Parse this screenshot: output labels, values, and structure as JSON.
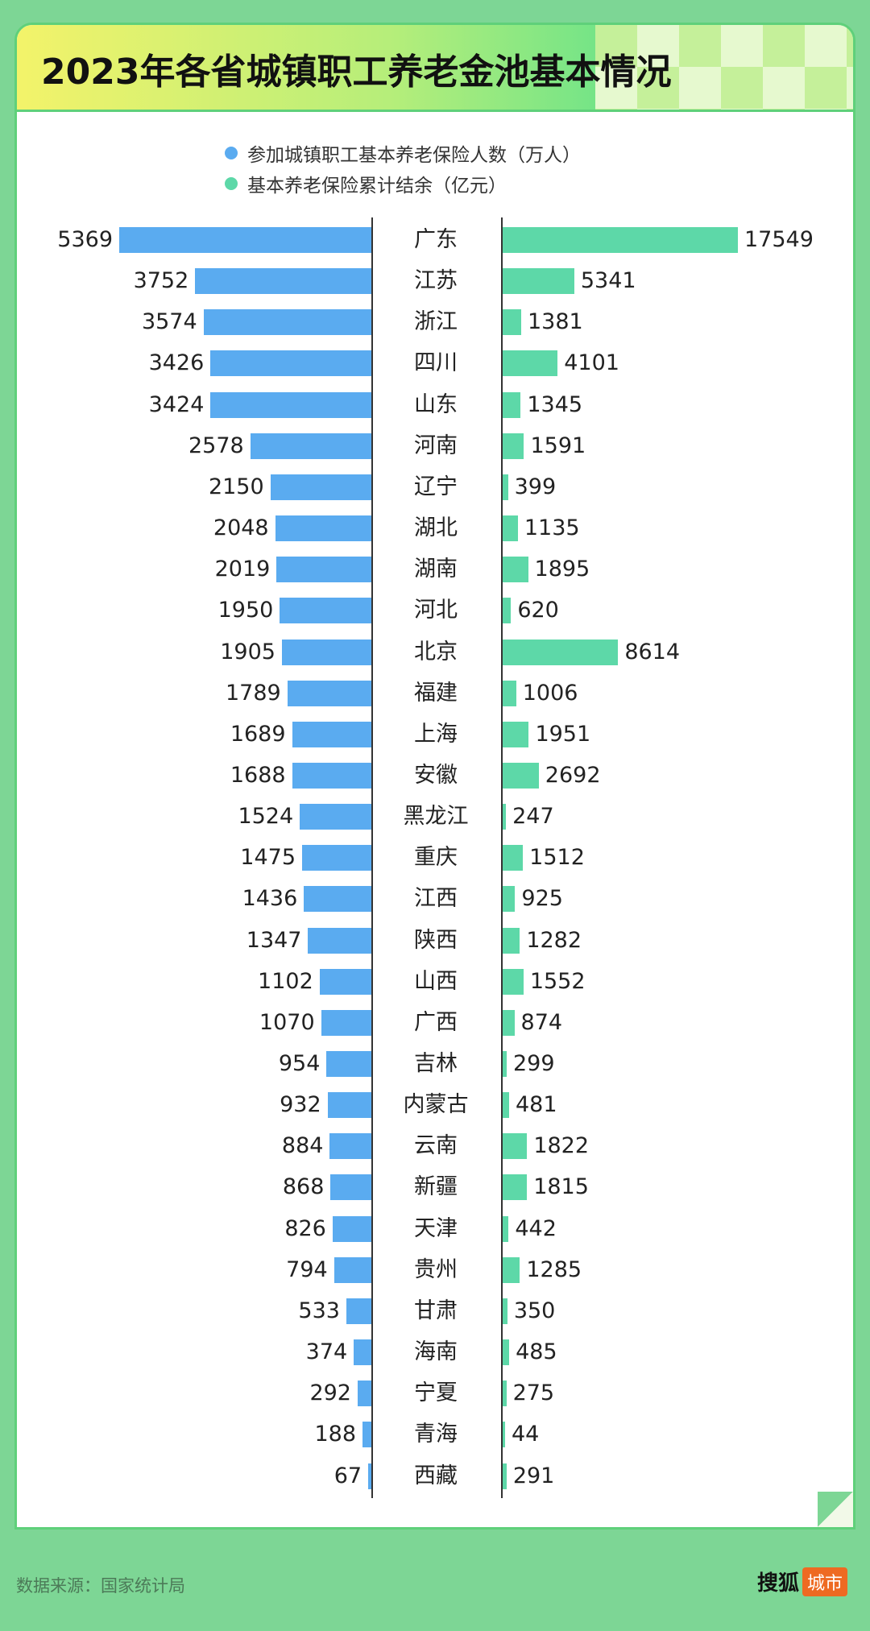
{
  "title": "2023年各省城镇职工养老金池基本情况",
  "footer": {
    "source": "数据来源：国家统计局",
    "logo_main": "搜狐",
    "logo_tag": "城市"
  },
  "colors": {
    "blue": "#5aabf0",
    "green": "#5dd8a8"
  },
  "chart_data": {
    "type": "bar",
    "layout": "butterfly horizontal bar",
    "legend": [
      "参加城镇职工基本养老保险人数（万人）",
      "基本养老保险累计结余（亿元）"
    ],
    "categories": [
      "广东",
      "江苏",
      "浙江",
      "四川",
      "山东",
      "河南",
      "辽宁",
      "湖北",
      "湖南",
      "河北",
      "北京",
      "福建",
      "上海",
      "安徽",
      "黑龙江",
      "重庆",
      "江西",
      "陕西",
      "山西",
      "广西",
      "吉林",
      "内蒙古",
      "云南",
      "新疆",
      "天津",
      "贵州",
      "甘肃",
      "海南",
      "宁夏",
      "青海",
      "西藏"
    ],
    "series": [
      {
        "name": "参加城镇职工基本养老保险人数（万人）",
        "color": "#5aabf0",
        "direction": "left",
        "values": [
          5369,
          3752,
          3574,
          3426,
          3424,
          2578,
          2150,
          2048,
          2019,
          1950,
          1905,
          1789,
          1689,
          1688,
          1524,
          1475,
          1436,
          1347,
          1102,
          1070,
          954,
          932,
          884,
          868,
          826,
          794,
          533,
          374,
          292,
          188,
          67
        ]
      },
      {
        "name": "基本养老保险累计结余（亿元）",
        "color": "#5dd8a8",
        "direction": "right",
        "values": [
          17549,
          5341,
          1381,
          4101,
          1345,
          1591,
          399,
          1135,
          1895,
          620,
          8614,
          1006,
          1951,
          2692,
          247,
          1512,
          925,
          1282,
          1552,
          874,
          299,
          481,
          1822,
          1815,
          442,
          1285,
          350,
          485,
          275,
          44,
          291
        ]
      }
    ]
  }
}
